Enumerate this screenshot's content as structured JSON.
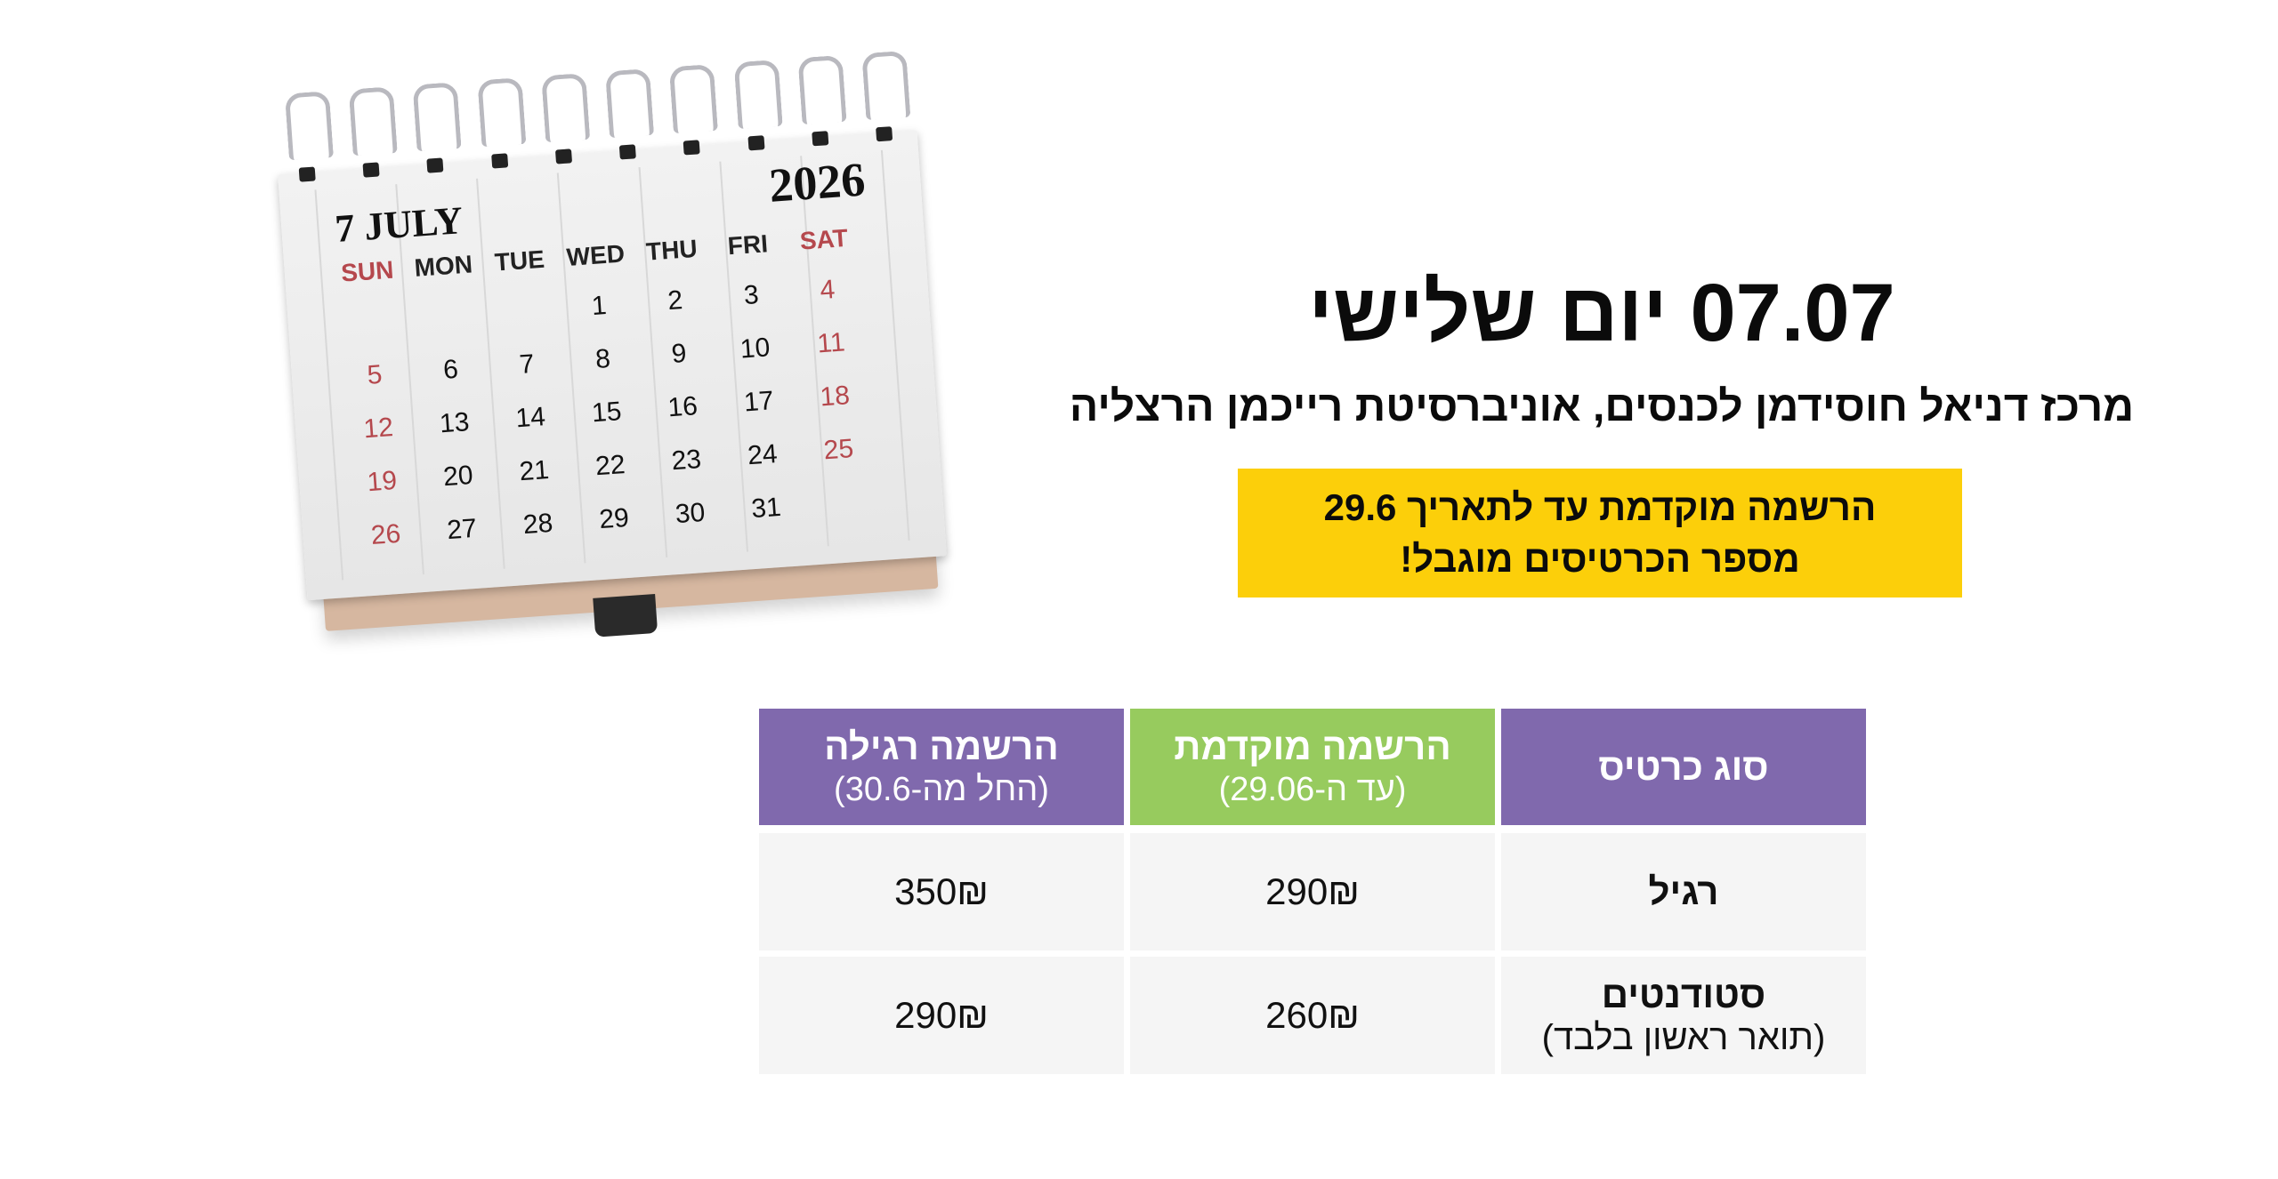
{
  "calendar": {
    "month_label": "7 JULY",
    "year": "2026",
    "day_names": [
      "SUN",
      "MON",
      "TUE",
      "WED",
      "THU",
      "FRI",
      "SAT"
    ],
    "weeks": [
      [
        "",
        "",
        "",
        "1",
        "2",
        "3",
        "4"
      ],
      [
        "5",
        "6",
        "7",
        "8",
        "9",
        "10",
        "11"
      ],
      [
        "12",
        "13",
        "14",
        "15",
        "16",
        "17",
        "18"
      ],
      [
        "19",
        "20",
        "21",
        "22",
        "23",
        "24",
        "25"
      ],
      [
        "26",
        "27",
        "28",
        "29",
        "30",
        "31",
        ""
      ]
    ],
    "weekend_color": "#b5484d"
  },
  "event": {
    "title": "07.07 יום שלישי",
    "location": "מרכז דניאל חוסידמן לכנסים, אוניברסיטת רייכמן הרצליה"
  },
  "notice": {
    "line1": "הרשמה מוקדמת עד לתאריך 29.6",
    "line2": "מספר הכרטיסים מוגבל!",
    "color": "#FCCF0A"
  },
  "pricing_table": {
    "headers": {
      "ticket_type": "סוג כרטיס",
      "early": {
        "title": "הרשמה מוקדמת",
        "sub": "(עד ה-29.06)"
      },
      "regular": {
        "title": "הרשמה רגילה",
        "sub": "(החל מה-30.6)"
      }
    },
    "rows": [
      {
        "type": "רגיל",
        "type_sub": "",
        "early": "290₪",
        "regular": "350₪"
      },
      {
        "type": "סטודנטים",
        "type_sub": "(תואר ראשון בלבד)",
        "early": "260₪",
        "regular": "290₪"
      }
    ],
    "colors": {
      "purple": "#8069AD",
      "green": "#97CB5E",
      "cell": "#F5F5F5"
    }
  }
}
